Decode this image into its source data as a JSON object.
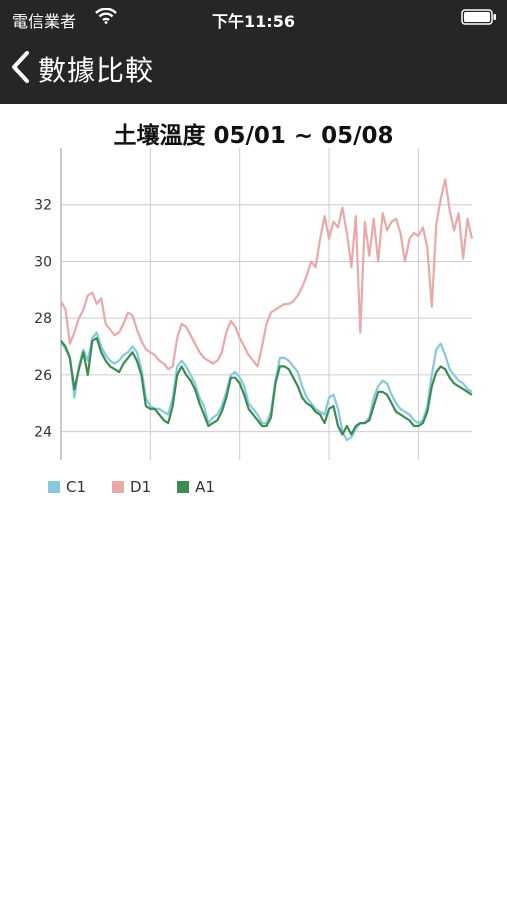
{
  "status_bar": {
    "carrier": "電信業者",
    "time": "下午11:56"
  },
  "nav": {
    "back_label": "數據比較"
  },
  "chart_data": {
    "type": "line",
    "title": "土壤溫度 05/01 ~ 05/08",
    "xlabel": "",
    "ylabel": "",
    "x": [
      0,
      1,
      2,
      3,
      4,
      5,
      6,
      7,
      8,
      9,
      10,
      11,
      12,
      13,
      14,
      15,
      16,
      17,
      18,
      19,
      20,
      21,
      22,
      23,
      24,
      25,
      26,
      27,
      28,
      29,
      30,
      31,
      32,
      33,
      34,
      35,
      36,
      37,
      38,
      39,
      40,
      41,
      42,
      43,
      44,
      45,
      46,
      47,
      48,
      49,
      50,
      51,
      52,
      53,
      54,
      55,
      56,
      57,
      58,
      59,
      60,
      61,
      62,
      63,
      64,
      65,
      66,
      67,
      68,
      69,
      70,
      71,
      72,
      73,
      74,
      75,
      76,
      77,
      78,
      79,
      80,
      81,
      82,
      83,
      84,
      85,
      86,
      87,
      88,
      89,
      90,
      91,
      92
    ],
    "xlim": [
      0,
      92
    ],
    "ylim": [
      23,
      34
    ],
    "yticks": [
      24,
      26,
      28,
      30,
      32
    ],
    "x_gridlines": [
      20,
      40,
      60,
      80
    ],
    "grid": true,
    "legend_position": "bottom-left",
    "series": [
      {
        "name": "C1",
        "color": "#86C9DE",
        "values": [
          27.2,
          26.9,
          26.6,
          25.2,
          26.3,
          26.9,
          26.5,
          27.3,
          27.5,
          27.0,
          26.7,
          26.5,
          26.4,
          26.5,
          26.7,
          26.8,
          27.0,
          26.8,
          26.2,
          25.2,
          24.9,
          24.8,
          24.8,
          24.7,
          24.6,
          25.2,
          26.3,
          26.5,
          26.3,
          26.0,
          25.7,
          25.2,
          24.9,
          24.3,
          24.5,
          24.6,
          24.9,
          25.4,
          26.0,
          26.1,
          25.9,
          25.6,
          25.0,
          24.8,
          24.6,
          24.3,
          24.3,
          24.7,
          25.8,
          26.6,
          26.6,
          26.5,
          26.3,
          26.1,
          25.6,
          25.2,
          25.0,
          24.8,
          24.7,
          24.6,
          25.2,
          25.3,
          24.8,
          24.0,
          23.7,
          23.8,
          24.1,
          24.3,
          24.3,
          24.5,
          25.2,
          25.6,
          25.8,
          25.7,
          25.3,
          25.0,
          24.8,
          24.7,
          24.6,
          24.4,
          24.3,
          24.4,
          24.9,
          26.0,
          26.9,
          27.1,
          26.7,
          26.2,
          26.0,
          25.8,
          25.7,
          25.5,
          25.4
        ]
      },
      {
        "name": "D1",
        "color": "#EBA8A8",
        "values": [
          28.6,
          28.3,
          27.1,
          27.5,
          28.0,
          28.3,
          28.8,
          28.9,
          28.5,
          28.7,
          27.8,
          27.6,
          27.4,
          27.5,
          27.8,
          28.2,
          28.1,
          27.6,
          27.2,
          26.9,
          26.8,
          26.7,
          26.5,
          26.4,
          26.2,
          26.3,
          27.3,
          27.8,
          27.7,
          27.4,
          27.1,
          26.8,
          26.6,
          26.5,
          26.4,
          26.5,
          26.8,
          27.5,
          27.9,
          27.7,
          27.3,
          27.0,
          26.7,
          26.5,
          26.3,
          27.0,
          27.8,
          28.2,
          28.3,
          28.4,
          28.5,
          28.5,
          28.6,
          28.8,
          29.1,
          29.5,
          30.0,
          29.8,
          30.8,
          31.6,
          30.8,
          31.4,
          31.2,
          31.9,
          31.0,
          29.8,
          31.6,
          27.5,
          31.4,
          30.2,
          31.5,
          30.0,
          31.7,
          31.1,
          31.4,
          31.5,
          31.0,
          30.0,
          30.8,
          31.0,
          30.9,
          31.2,
          30.5,
          28.4,
          31.3,
          32.2,
          32.9,
          31.8,
          31.1,
          31.7,
          30.1,
          31.5,
          30.8
        ]
      },
      {
        "name": "A1",
        "color": "#3A8C52",
        "values": [
          27.2,
          27.0,
          26.6,
          25.5,
          26.2,
          26.8,
          26.0,
          27.2,
          27.3,
          26.8,
          26.5,
          26.3,
          26.2,
          26.1,
          26.4,
          26.6,
          26.8,
          26.5,
          26.0,
          24.9,
          24.8,
          24.8,
          24.6,
          24.4,
          24.3,
          24.9,
          26.0,
          26.3,
          26.0,
          25.8,
          25.5,
          25.0,
          24.6,
          24.2,
          24.3,
          24.4,
          24.7,
          25.2,
          25.9,
          25.9,
          25.7,
          25.3,
          24.8,
          24.6,
          24.4,
          24.2,
          24.2,
          24.5,
          25.7,
          26.3,
          26.3,
          26.2,
          25.9,
          25.6,
          25.2,
          25.0,
          24.9,
          24.7,
          24.6,
          24.3,
          24.8,
          24.9,
          24.2,
          23.9,
          24.2,
          23.9,
          24.2,
          24.3,
          24.3,
          24.4,
          24.9,
          25.4,
          25.4,
          25.3,
          25.0,
          24.7,
          24.6,
          24.5,
          24.4,
          24.2,
          24.2,
          24.3,
          24.7,
          25.6,
          26.1,
          26.3,
          26.2,
          25.9,
          25.7,
          25.6,
          25.5,
          25.4,
          25.3
        ]
      }
    ]
  }
}
